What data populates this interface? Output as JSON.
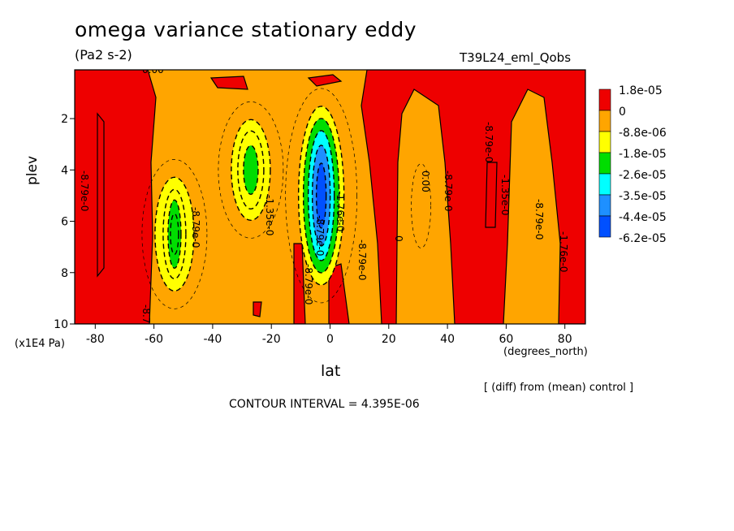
{
  "chart_data": {
    "type": "contour",
    "title": "omega variance stationary eddy",
    "units": "(Pa2 s-2)",
    "run_name": "T39L24_eml_Qobs",
    "xlabel": "lat",
    "ylabel": "plev",
    "x_unit": "(degrees_north)",
    "y_unit": "(x1E4 Pa)",
    "x_ticks": [
      -80,
      -60,
      -40,
      -20,
      0,
      20,
      40,
      60,
      80
    ],
    "y_ticks": [
      2,
      4,
      6,
      8,
      10
    ],
    "xlim": [
      -87,
      87
    ],
    "ylim": [
      10,
      0.1
    ],
    "note": "[ (diff) from (mean) control ]",
    "contour_interval": "CONTOUR INTERVAL = 4.395E-06",
    "legend": [
      {
        "label": "1.8e-05",
        "color": "#ee0000"
      },
      {
        "label": "0",
        "color": "#ffa500"
      },
      {
        "label": "-8.8e-06",
        "color": "#ffff00"
      },
      {
        "label": "-1.8e-05",
        "color": "#00dd00"
      },
      {
        "label": "-2.6e-05",
        "color": "#00ffff"
      },
      {
        "label": "-3.5e-05",
        "color": "#1e90ff"
      },
      {
        "label": "-4.4e-05",
        "color": "#0050ff"
      },
      {
        "label": "-6.2e-05",
        "color": null
      }
    ],
    "contour_labels": [
      "0.00",
      "-8.79e-0",
      "-8.79e-0",
      "-1.35e-0",
      "-8.79e-0",
      "-1.76e-0",
      "-8.79e-0",
      "-8.79e-0",
      "0"
    ],
    "background_field": "orange (0 to -8.8e-06)",
    "features": [
      {
        "description": "positive band",
        "lat_range": [
          -87,
          -70
        ],
        "color": "#ee0000"
      },
      {
        "description": "negative minimum",
        "lat": -53,
        "plev": 6.5,
        "min_color": "#00dd00"
      },
      {
        "description": "negative minimum",
        "lat": -27,
        "plev": 4,
        "min_color": "#00dd00"
      },
      {
        "description": "strongest negative minimum",
        "lat": -3,
        "plev": 5,
        "min_color": "#0050ff"
      }
    ]
  }
}
